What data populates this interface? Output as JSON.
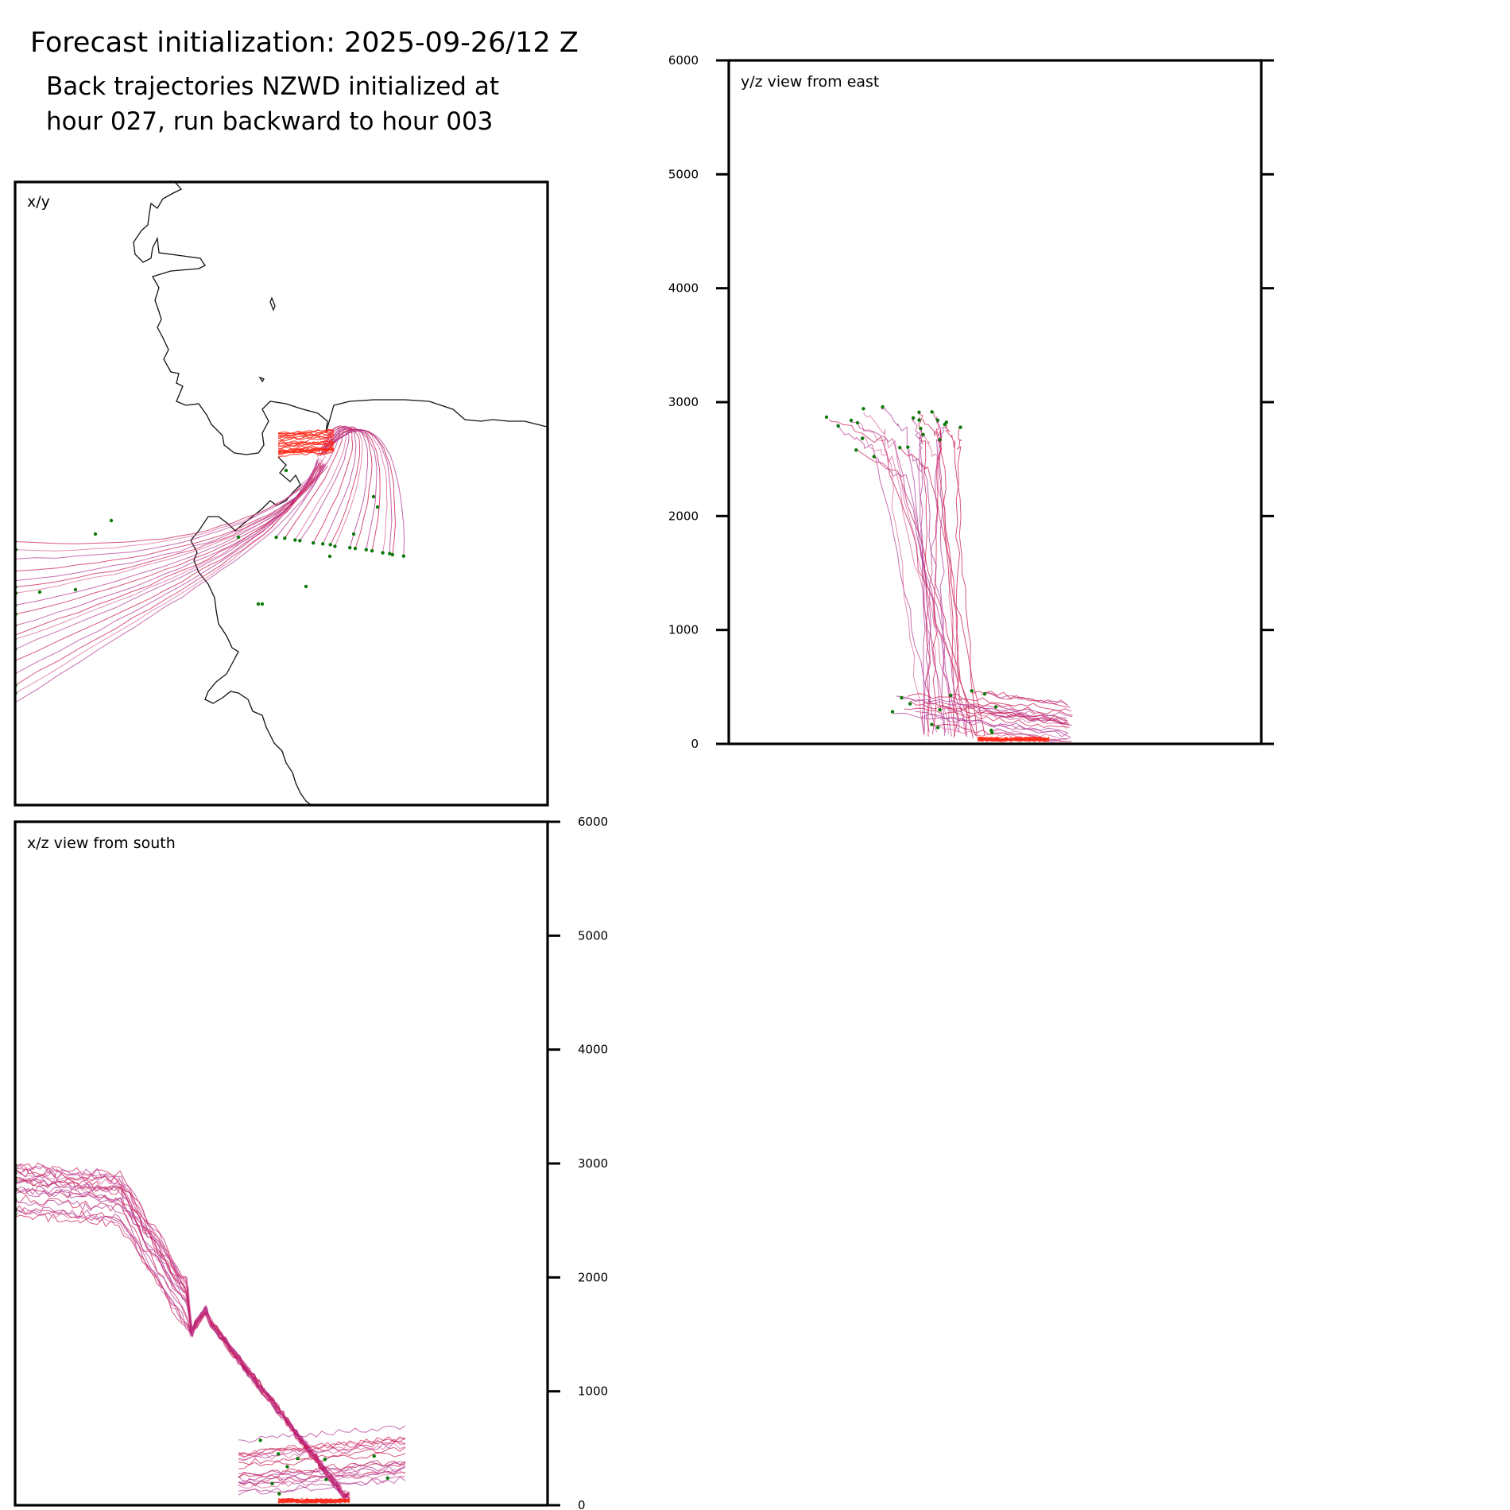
{
  "figure": {
    "title": "Forecast initialization: 2025-09-26/12 Z",
    "subtitle_lines": [
      "Back trajectories NZWD initialized at",
      "hour 027, run backward to hour 003"
    ]
  },
  "chart_data": [
    {
      "type": "line",
      "panel": "x/y",
      "title": "x/y",
      "description_series": "back trajectories (map plan view)",
      "legend": "none"
    },
    {
      "type": "line",
      "panel": "y/z",
      "title": "y/z view from east",
      "ylim": [
        0,
        6000
      ],
      "yticks": [
        0,
        1000,
        2000,
        3000,
        4000,
        5000,
        6000
      ],
      "yticks_labels": [
        "0",
        "1000",
        "2000",
        "3000",
        "4000",
        "5000",
        "6000"
      ]
    },
    {
      "type": "line",
      "panel": "x/z",
      "title": "x/z view from south",
      "ylim": [
        0,
        6000
      ],
      "yticks": [
        0,
        1000,
        2000,
        3000,
        4000,
        5000,
        6000
      ],
      "yticks_labels": [
        "0",
        "1000",
        "2000",
        "3000",
        "4000",
        "5000",
        "6000"
      ]
    }
  ],
  "colors": {
    "red": "#ff2a1a",
    "crimson": "#c8104a",
    "magenta": "#b0308f",
    "pink": "#d9609b",
    "marker": "#0b7a0b",
    "coast": "#111111"
  }
}
